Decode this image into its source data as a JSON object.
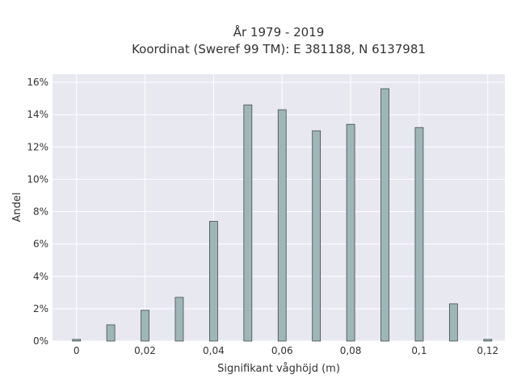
{
  "chart_data": {
    "type": "bar",
    "title": "År 1979 - 2019",
    "subtitle": "Koordinat (Sweref 99 TM): E 381188, N 6137981",
    "xlabel": "Signifikant våghöjd (m)",
    "ylabel": "Andel",
    "xlim": [
      -0.007,
      0.125
    ],
    "ylim": [
      0,
      16.5
    ],
    "grid": true,
    "x": [
      0,
      0.01,
      0.02,
      0.03,
      0.04,
      0.05,
      0.06,
      0.07,
      0.08,
      0.09,
      0.1,
      0.11,
      0.12
    ],
    "values": [
      0.1,
      1.0,
      1.9,
      2.7,
      7.4,
      14.6,
      14.3,
      13.0,
      13.4,
      15.6,
      13.2,
      2.3,
      0.1
    ],
    "x_ticks": [
      0,
      0.02,
      0.04,
      0.06,
      0.08,
      0.1,
      0.12
    ],
    "x_tick_labels": [
      "0",
      "0,02",
      "0,04",
      "0,06",
      "0,08",
      "0,1",
      "0,12"
    ],
    "y_ticks": [
      0,
      2,
      4,
      6,
      8,
      10,
      12,
      14,
      16
    ],
    "y_tick_labels": [
      "0%",
      "2%",
      "4%",
      "6%",
      "8%",
      "10%",
      "12%",
      "14%",
      "16%"
    ],
    "colors": {
      "bar_fill": "#9fb6b8",
      "bar_stroke": "#3f4a4a",
      "plot_bg": "#e8e8f0",
      "grid": "#ffffff"
    }
  }
}
